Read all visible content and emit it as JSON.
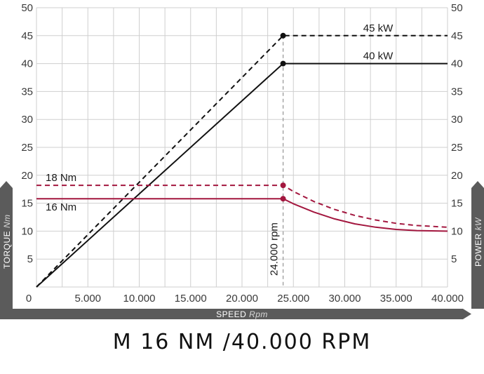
{
  "chart_data": {
    "type": "line",
    "title": "M 16 NM /40.000 RPM",
    "xlabel": "SPEED",
    "xlabel_unit": "Rpm",
    "ylabel_left": "TORQUE",
    "ylabel_left_unit": "Nm",
    "ylabel_right": "POWER",
    "ylabel_right_unit": "kW",
    "xlim": [
      0,
      40000
    ],
    "ylim_left": [
      0,
      50
    ],
    "ylim_right": [
      0,
      50
    ],
    "x_ticks": [
      "0",
      "5.000",
      "10.000",
      "15.000",
      "20.000",
      "25.000",
      "30.000",
      "35.000",
      "40.000"
    ],
    "y_left_ticks": [
      "5",
      "10",
      "15",
      "20",
      "25",
      "30",
      "35",
      "40",
      "45",
      "50"
    ],
    "y_right_ticks": [
      "5",
      "10",
      "15",
      "20",
      "25",
      "30",
      "35",
      "40",
      "45",
      "50"
    ],
    "grid": true,
    "series": [
      {
        "label": "45 kW",
        "style": "dashed",
        "color": "#111111",
        "points": [
          [
            0,
            0
          ],
          [
            24000,
            45
          ],
          [
            40000,
            45
          ]
        ]
      },
      {
        "label": "40 kW",
        "style": "solid",
        "color": "#111111",
        "points": [
          [
            0,
            0
          ],
          [
            24000,
            40
          ],
          [
            40000,
            40
          ]
        ]
      },
      {
        "label": "18 Nm",
        "style": "dashed",
        "color": "#a3173f",
        "points": [
          [
            0,
            18.2
          ],
          [
            24000,
            18.2
          ],
          [
            25000,
            17.1
          ],
          [
            27000,
            15.3
          ],
          [
            29000,
            13.9
          ],
          [
            31000,
            12.8
          ],
          [
            33000,
            12.0
          ],
          [
            35000,
            11.4
          ],
          [
            37000,
            11.0
          ],
          [
            40000,
            10.7
          ]
        ]
      },
      {
        "label": "16 Nm",
        "style": "solid",
        "color": "#a3173f",
        "points": [
          [
            0,
            15.8
          ],
          [
            24000,
            15.8
          ],
          [
            25000,
            14.9
          ],
          [
            27000,
            13.4
          ],
          [
            29000,
            12.2
          ],
          [
            31000,
            11.3
          ],
          [
            33000,
            10.7
          ],
          [
            35000,
            10.3
          ],
          [
            37000,
            10.1
          ],
          [
            40000,
            10.0
          ]
        ]
      }
    ],
    "markers": [
      {
        "x": 24000,
        "y": 45,
        "color": "#111111"
      },
      {
        "x": 24000,
        "y": 40,
        "color": "#111111"
      },
      {
        "x": 24000,
        "y": 18.2,
        "color": "#a3173f"
      },
      {
        "x": 24000,
        "y": 15.8,
        "color": "#a3173f"
      }
    ],
    "annotations": [
      {
        "text": "24.000 rpm",
        "x": 24000
      }
    ]
  },
  "colors": {
    "grid": "#cfcfcf",
    "power": "#111111",
    "torque": "#a3173f",
    "bar": "#5b5b5b"
  }
}
